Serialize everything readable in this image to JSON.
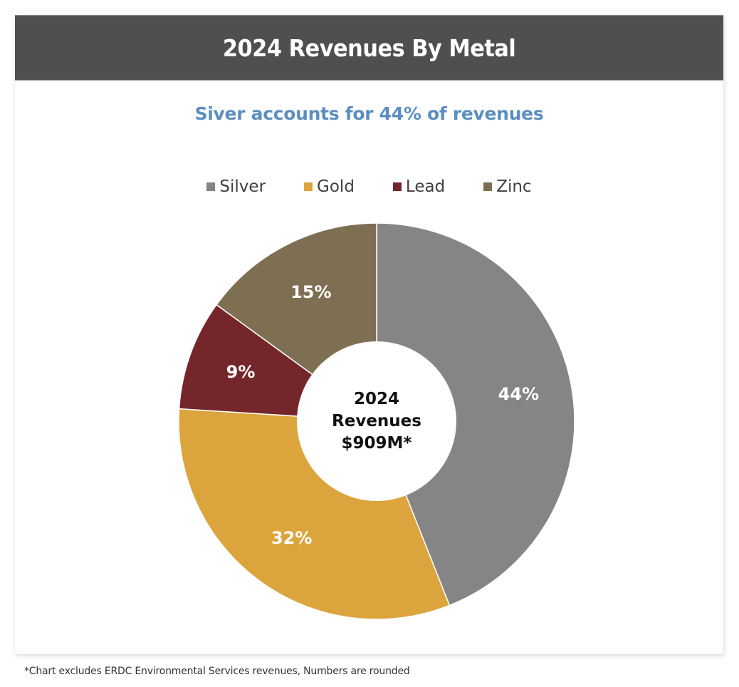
{
  "header": {
    "title": "2024 Revenues By Metal"
  },
  "subtitle": "Siver accounts for 44% of revenues",
  "footnote": "*Chart excludes ERDC Environmental Services revenues, Numbers are rounded",
  "chart_data": {
    "type": "pie",
    "variant": "donut",
    "title": "2024 Revenues By Metal",
    "subtitle": "Siver accounts for 44% of revenues",
    "legend_position": "top",
    "start_angle_deg": 0,
    "direction": "clockwise",
    "center_label": [
      "2024",
      "Revenues",
      "$909M*"
    ],
    "categories": [
      "Silver",
      "Gold",
      "Lead",
      "Zinc"
    ],
    "values": [
      44,
      32,
      9,
      15
    ],
    "unit": "%",
    "data_labels": [
      "44%",
      "32%",
      "9%",
      "15%"
    ],
    "colors": [
      "#858585",
      "#dca43c",
      "#74262a",
      "#7f6f52"
    ],
    "total_revenue": "$909M"
  }
}
